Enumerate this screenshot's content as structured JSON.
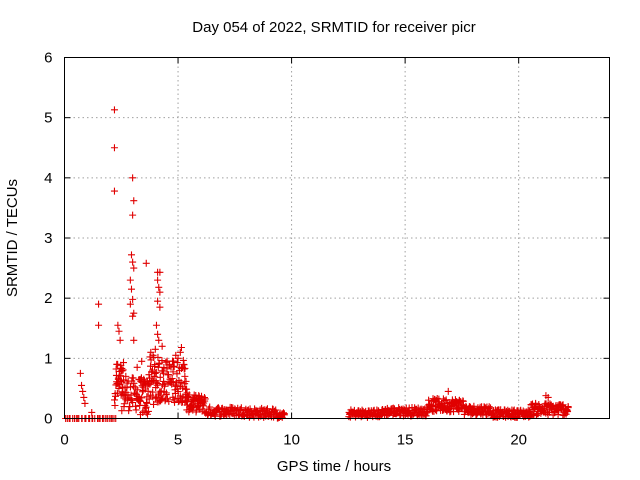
{
  "chart_data": {
    "type": "scatter",
    "title": "Day 054 of 2022, SRMTID for receiver picr",
    "xlabel": "GPS time / hours",
    "ylabel": "SRMTID / TECUs",
    "xlim": [
      0,
      24
    ],
    "ylim": [
      0,
      6
    ],
    "xticks": [
      0,
      5,
      10,
      15,
      20
    ],
    "yticks": [
      0,
      1,
      2,
      3,
      4,
      5,
      6
    ],
    "xtick_labels": [
      "0",
      "5",
      "10",
      "15",
      "20"
    ],
    "ytick_labels": [
      "0",
      "1",
      "2",
      "3",
      "4",
      "5",
      "6"
    ],
    "grid": true,
    "marker": "plus",
    "color": "#e00000",
    "series": [
      {
        "outliers": [
          [
            0.7,
            0.75
          ],
          [
            0.75,
            0.55
          ],
          [
            0.8,
            0.45
          ],
          [
            0.85,
            0.35
          ],
          [
            0.9,
            0.25
          ],
          [
            1.5,
            1.9
          ],
          [
            1.5,
            1.55
          ],
          [
            2.2,
            5.13
          ],
          [
            2.2,
            4.5
          ],
          [
            2.2,
            3.78
          ],
          [
            2.3,
            0.9
          ],
          [
            2.35,
            1.55
          ],
          [
            2.4,
            1.45
          ],
          [
            2.45,
            1.3
          ],
          [
            3.0,
            4.0
          ],
          [
            3.05,
            3.62
          ],
          [
            3.0,
            3.38
          ],
          [
            2.95,
            2.72
          ],
          [
            3.0,
            2.6
          ],
          [
            3.05,
            2.5
          ],
          [
            2.9,
            2.3
          ],
          [
            2.95,
            2.15
          ],
          [
            3.0,
            1.98
          ],
          [
            2.9,
            1.9
          ],
          [
            3.05,
            1.75
          ],
          [
            3.0,
            1.7
          ],
          [
            3.05,
            1.3
          ],
          [
            3.6,
            2.58
          ],
          [
            4.1,
            2.43
          ],
          [
            4.2,
            2.43
          ],
          [
            4.1,
            2.3
          ],
          [
            4.15,
            2.18
          ],
          [
            4.2,
            2.1
          ],
          [
            4.1,
            1.95
          ],
          [
            4.2,
            1.85
          ],
          [
            4.05,
            1.55
          ],
          [
            4.1,
            1.4
          ],
          [
            4.15,
            1.3
          ],
          [
            4.3,
            1.2
          ],
          [
            4.0,
            1.15
          ],
          [
            4.9,
            1.05
          ],
          [
            5.0,
            1.0
          ],
          [
            5.1,
            1.1
          ],
          [
            5.15,
            1.18
          ],
          [
            4.8,
            0.95
          ],
          [
            5.3,
            0.7
          ],
          [
            5.2,
            0.85
          ],
          [
            3.4,
            0.95
          ],
          [
            3.2,
            0.85
          ],
          [
            2.7,
            0.7
          ],
          [
            3.8,
            1.1
          ],
          [
            3.9,
            1.05
          ],
          [
            1.2,
            0.1
          ],
          [
            16.9,
            0.45
          ],
          [
            21.2,
            0.38
          ],
          [
            21.3,
            0.35
          ]
        ],
        "clusters": [
          {
            "x": [
              0.0,
              2.3
            ],
            "base": 0.0,
            "spread": 0.0,
            "n": 30
          },
          {
            "x": [
              2.2,
              2.6
            ],
            "base": 0.5,
            "spread": 0.45,
            "n": 30
          },
          {
            "x": [
              2.5,
              3.3
            ],
            "base": 0.35,
            "spread": 0.35,
            "n": 45
          },
          {
            "x": [
              3.3,
              3.7
            ],
            "base": 0.3,
            "spread": 0.4,
            "n": 35
          },
          {
            "x": [
              3.7,
              4.4
            ],
            "base": 0.55,
            "spread": 0.5,
            "n": 55
          },
          {
            "x": [
              4.4,
              5.4
            ],
            "base": 0.55,
            "spread": 0.45,
            "n": 70
          },
          {
            "x": [
              5.3,
              6.2
            ],
            "base": 0.22,
            "spread": 0.18,
            "n": 60
          },
          {
            "x": [
              6.2,
              8.0
            ],
            "base": 0.1,
            "spread": 0.1,
            "n": 70
          },
          {
            "x": [
              8.0,
              9.3
            ],
            "base": 0.08,
            "spread": 0.1,
            "n": 55
          },
          {
            "x": [
              9.3,
              9.7
            ],
            "base": 0.04,
            "spread": 0.06,
            "n": 20
          },
          {
            "x": [
              12.5,
              14.0
            ],
            "base": 0.07,
            "spread": 0.08,
            "n": 70
          },
          {
            "x": [
              14.0,
              16.0
            ],
            "base": 0.1,
            "spread": 0.09,
            "n": 90
          },
          {
            "x": [
              16.0,
              17.6
            ],
            "base": 0.2,
            "spread": 0.14,
            "n": 90
          },
          {
            "x": [
              17.6,
              18.8
            ],
            "base": 0.12,
            "spread": 0.1,
            "n": 60
          },
          {
            "x": [
              18.8,
              20.5
            ],
            "base": 0.07,
            "spread": 0.08,
            "n": 80
          },
          {
            "x": [
              20.5,
              22.2
            ],
            "base": 0.13,
            "spread": 0.13,
            "n": 90
          }
        ]
      }
    ]
  }
}
